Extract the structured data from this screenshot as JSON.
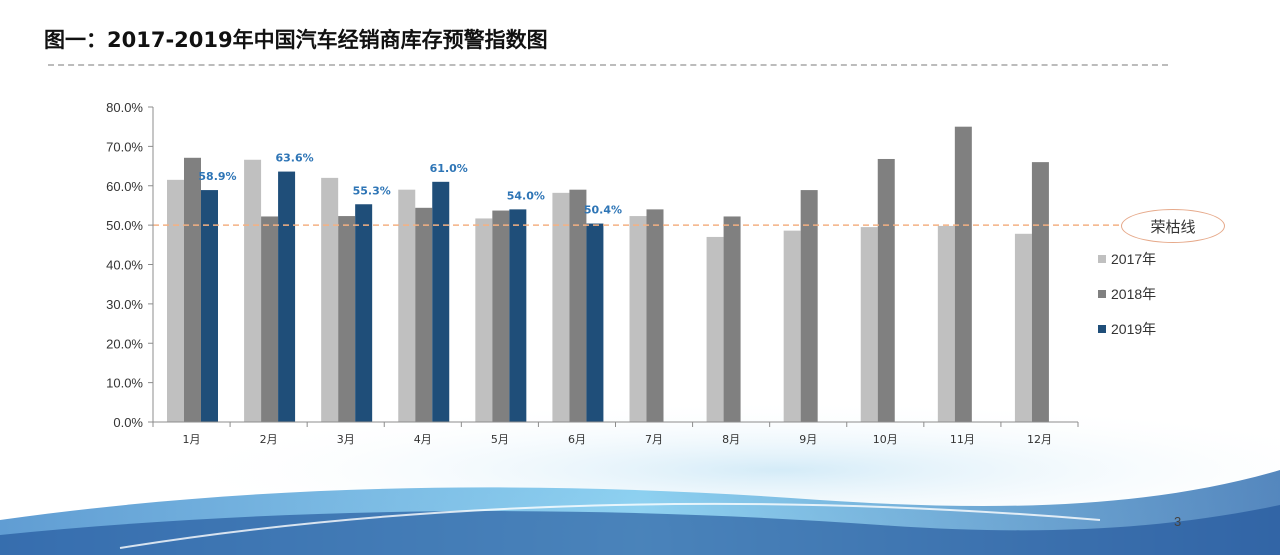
{
  "title": "图一：2017-2019年中国汽车经销商库存预警指数图",
  "page_number": "3",
  "colors": {
    "s2017": "#c0c0c0",
    "s2018": "#808080",
    "s2019": "#1f4e79",
    "label": "#2e75b6",
    "reference_line": "#f4b183"
  },
  "chart_data": {
    "type": "bar",
    "categories": [
      "1月",
      "2月",
      "3月",
      "4月",
      "5月",
      "6月",
      "7月",
      "8月",
      "9月",
      "10月",
      "11月",
      "12月"
    ],
    "series": [
      {
        "name": "2017年",
        "values": [
          61.5,
          66.6,
          62.0,
          59.0,
          51.7,
          58.2,
          52.3,
          47.0,
          48.6,
          49.5,
          49.8,
          47.8
        ]
      },
      {
        "name": "2018年",
        "values": [
          67.1,
          52.2,
          52.3,
          54.4,
          53.7,
          59.0,
          54.0,
          52.2,
          58.9,
          66.8,
          75.0,
          66.0
        ]
      },
      {
        "name": "2019年",
        "values": [
          58.9,
          63.6,
          55.3,
          61.0,
          54.0,
          50.4,
          null,
          null,
          null,
          null,
          null,
          null
        ],
        "labels": [
          "58.9%",
          "63.6%",
          "55.3%",
          "61.0%",
          "54.0%",
          "50.4%"
        ]
      }
    ],
    "yticks": [
      "0.0%",
      "10.0%",
      "20.0%",
      "30.0%",
      "40.0%",
      "50.0%",
      "60.0%",
      "70.0%",
      "80.0%"
    ],
    "ylim": [
      0,
      80
    ],
    "reference_line": {
      "value": 50,
      "label": "荣枯线"
    },
    "legend": {
      "position": "right"
    }
  }
}
